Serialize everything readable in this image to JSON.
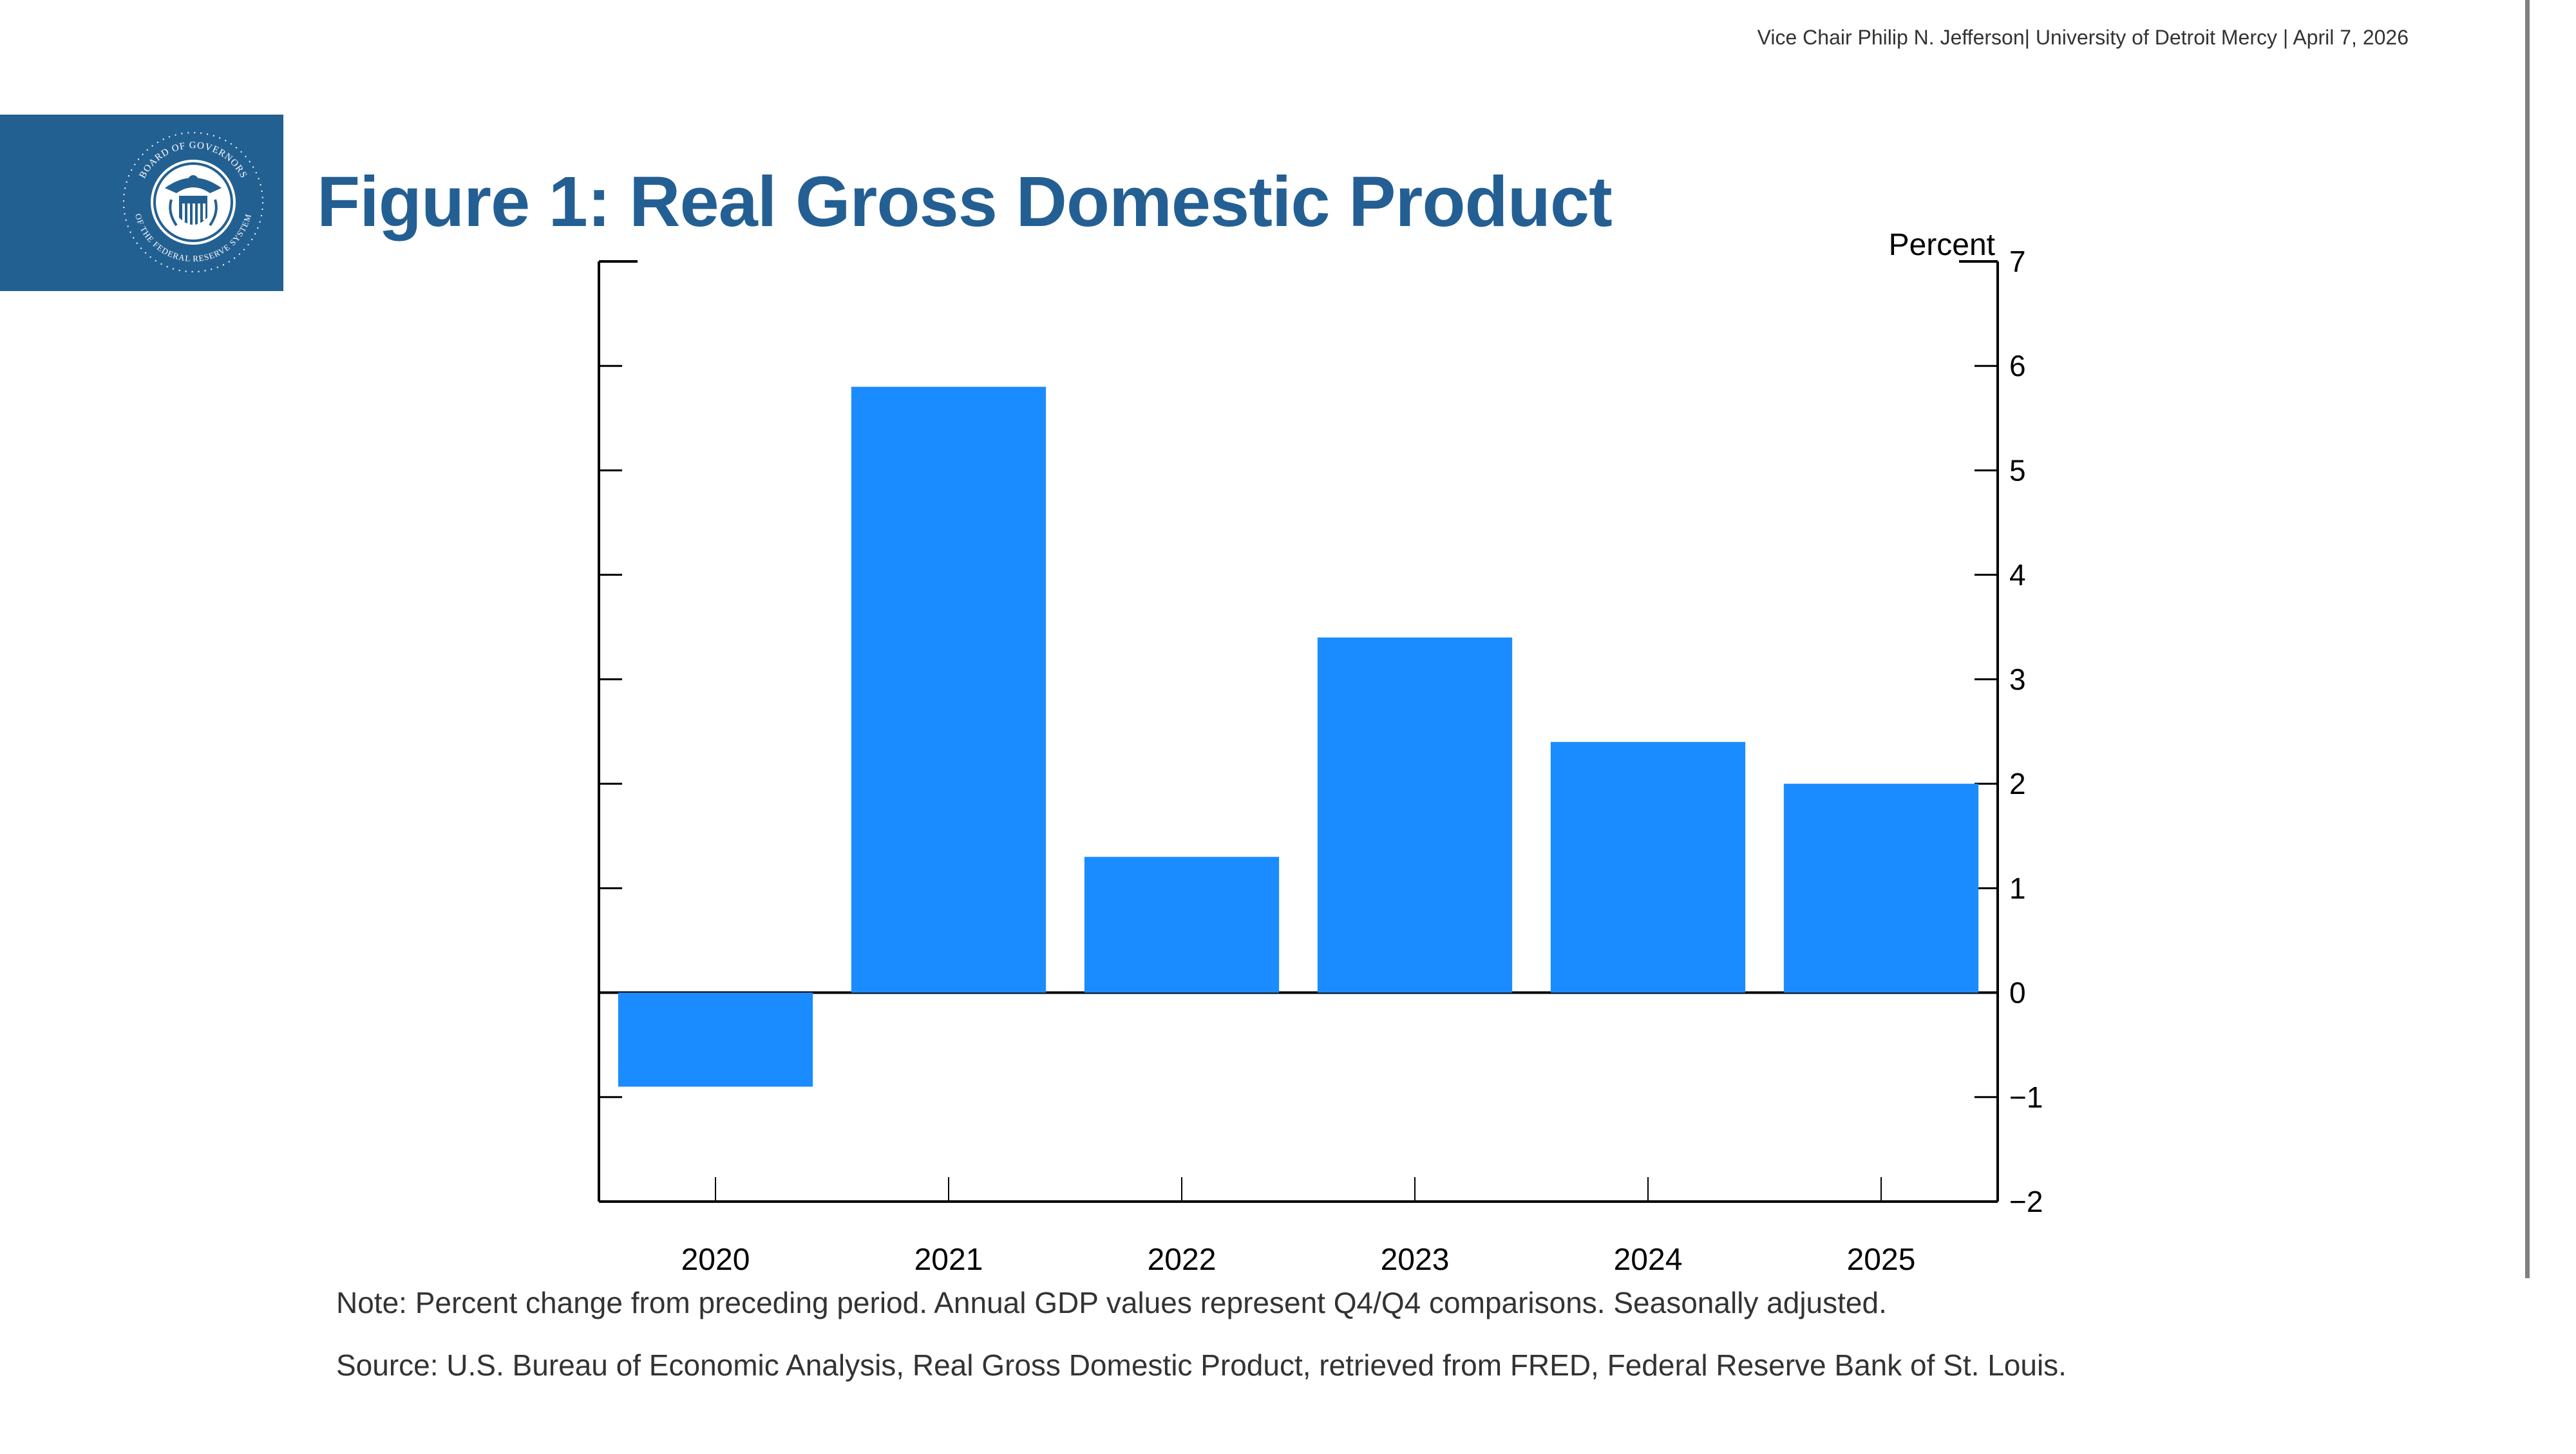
{
  "header": {
    "meta": "Vice Chair Philip N. Jefferson| University of Detroit Mercy | April 7, 2026"
  },
  "logo": {
    "icon": "federal-reserve-seal-icon",
    "top_text": "BOARD OF GOVERNORS",
    "bottom_text": "OF THE FEDERAL RESERVE SYSTEM",
    "banner_color": "#236092"
  },
  "title": "Figure 1: Real Gross Domestic Product",
  "chart_data": {
    "type": "bar",
    "title": "Figure 1: Real Gross Domestic Product",
    "xlabel": "",
    "ylabel": "Percent",
    "categories": [
      "2020",
      "2021",
      "2022",
      "2023",
      "2024",
      "2025"
    ],
    "values": [
      -0.9,
      5.8,
      1.3,
      3.4,
      2.4,
      2.0
    ],
    "ylim": [
      -2,
      7
    ],
    "yticks": [
      7,
      6,
      5,
      4,
      3,
      2,
      1,
      0,
      -1,
      -2
    ],
    "ytick_labels": [
      "7",
      "6",
      "5",
      "4",
      "3",
      "2",
      "1",
      "0",
      "−1",
      "−2"
    ],
    "y_axis_side": "right",
    "grid": false,
    "bar_color": "#1a8cff",
    "legend": null
  },
  "footer": {
    "note": "Note: Percent change from preceding period. Annual GDP values represent Q4/Q4 comparisons. Seasonally adjusted.",
    "source": "Source: U.S. Bureau of Economic Analysis, Real Gross Domestic Product, retrieved from FRED, Federal Reserve Bank of St. Louis."
  }
}
